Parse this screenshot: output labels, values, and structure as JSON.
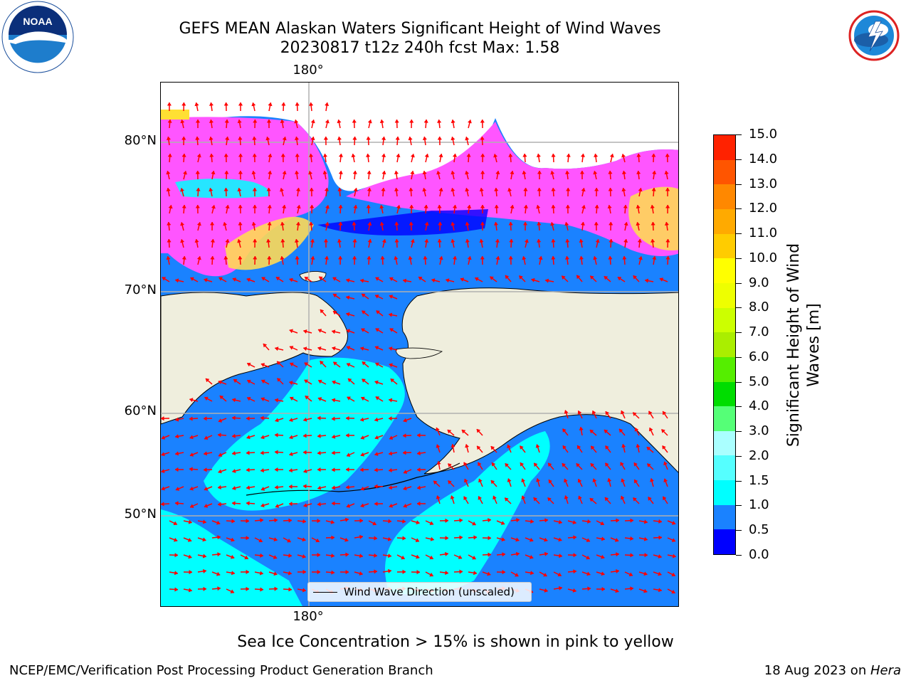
{
  "header": {
    "title_line1": "GEFS MEAN Alaskan Waters Significant Height of Wind Waves",
    "title_line2": "20230817 t12z 240h fcst   Max: 1.58"
  },
  "logos": {
    "left": "noaa-logo",
    "right": "nws-logo"
  },
  "map": {
    "lat_labels": [
      "80°N",
      "70°N",
      "60°N",
      "50°N"
    ],
    "lon_label_top": "180°",
    "lon_label_bottom": "180°",
    "legend_label": "Wind Wave Direction (unscaled)",
    "colors": {
      "land": "#efeedd",
      "ocean_low": "#1a82ff",
      "ocean_vlow": "#0000ff",
      "wave_mid": "#00ffff",
      "ice_pink": "#ff55ff",
      "ice_yellow": "#ffe033",
      "arrow": "#ff0000",
      "grid": "#b0b0b0"
    }
  },
  "colorbar": {
    "title": "Significant Height of Wind Waves [m]",
    "title_line1": "Significant Height of Wind",
    "title_line2": "Waves [m]",
    "ticks": [
      "0.0",
      "0.5",
      "1.0",
      "1.5",
      "2.0",
      "3.0",
      "4.0",
      "5.0",
      "6.0",
      "7.0",
      "8.0",
      "9.0",
      "10.0",
      "11.0",
      "12.0",
      "13.0",
      "14.0",
      "15.0"
    ],
    "colors": [
      "#0000ff",
      "#1a82ff",
      "#00ffff",
      "#55ffff",
      "#aaffff",
      "#55ff77",
      "#00dd00",
      "#55ee00",
      "#aaee00",
      "#ccff00",
      "#eeff00",
      "#ffff00",
      "#ffcc00",
      "#ffaa00",
      "#ff8800",
      "#ff5500",
      "#ff2200"
    ]
  },
  "subtitle": "Sea Ice Concentration > 15% is shown in pink to yellow",
  "footer": {
    "left": "NCEP/EMC/Verification Post Processing Product Generation Branch",
    "right_date": "18 Aug 2023 on ",
    "right_host": "Hera"
  }
}
